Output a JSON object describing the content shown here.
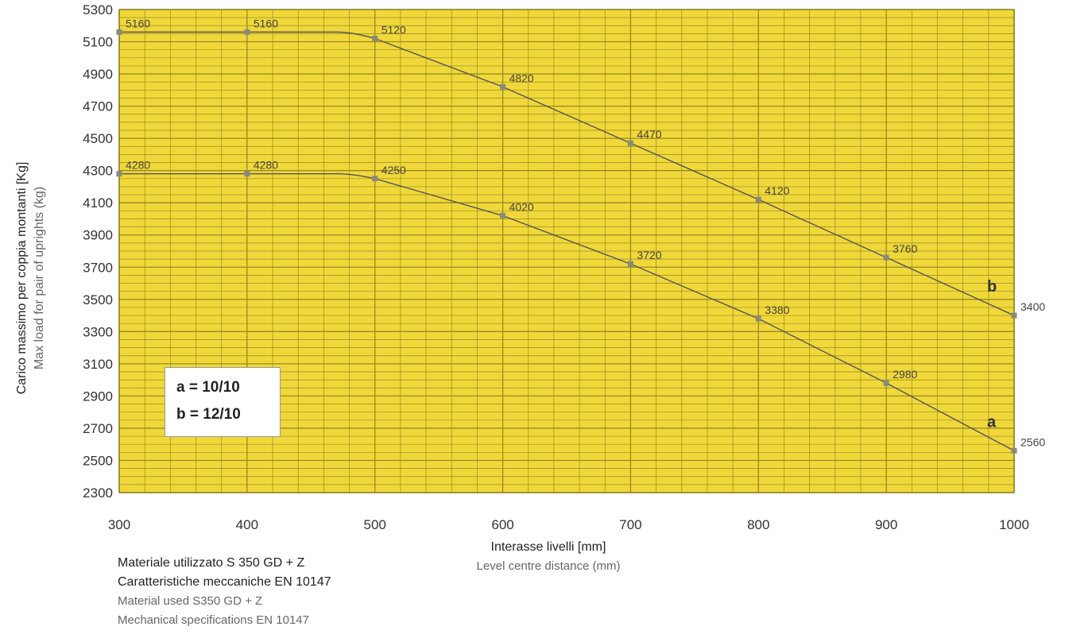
{
  "chart_data": {
    "type": "line",
    "x": [
      300,
      400,
      500,
      600,
      700,
      800,
      900,
      1000
    ],
    "xlim": [
      300,
      1000
    ],
    "ylim": [
      2300,
      5300
    ],
    "x_ticks": [
      "300",
      "400",
      "500",
      "600",
      "700",
      "800",
      "900",
      "1000"
    ],
    "y_ticks": [
      "2300",
      "2500",
      "2700",
      "2900",
      "3100",
      "3300",
      "3500",
      "3700",
      "3900",
      "4100",
      "4300",
      "4500",
      "4700",
      "4900",
      "5100",
      "5300"
    ],
    "ylabel": "Carico massimo per coppia montanti [Kg]",
    "ylabel_en": "Max load for pair of uprights (kg)",
    "xlabel": "Interasse livelli [mm]",
    "xlabel_en": "Level centre distance (mm)",
    "grid": true,
    "background_color": "#f0d83a",
    "grid_color": "#9a8a20",
    "line_color": "#555555",
    "series": [
      {
        "name": "a",
        "values": [
          4280,
          4280,
          4250,
          4020,
          3720,
          3380,
          2980,
          2560
        ],
        "labels": [
          "4280",
          "4280",
          "4250",
          "4020",
          "3720",
          "3380",
          "2980",
          "2560"
        ]
      },
      {
        "name": "b",
        "values": [
          5160,
          5160,
          5120,
          4820,
          4470,
          4120,
          3760,
          3400
        ],
        "labels": [
          "5160",
          "5160",
          "5120",
          "4820",
          "4470",
          "4120",
          "3760",
          "3400"
        ]
      }
    ]
  },
  "legend": {
    "line_a": "a = 10/10",
    "line_b": "b = 12/10"
  },
  "notes": {
    "line1": "Materiale utilizzato S 350 GD + Z",
    "line2": "Caratteristiche meccaniche EN 10147",
    "line3": "Material used S350 GD + Z",
    "line4": "Mechanical specifications EN 10147"
  }
}
